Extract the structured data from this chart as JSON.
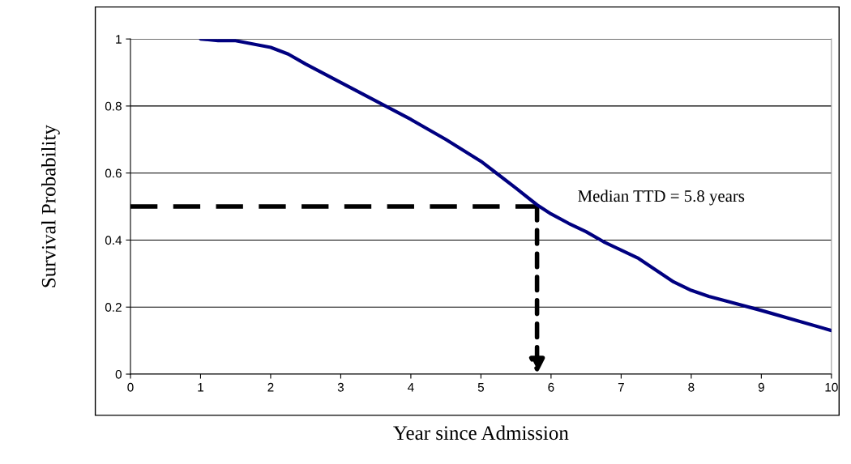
{
  "chart_data": {
    "type": "line",
    "xlabel": "Year since Admission",
    "ylabel": "Survival Probability",
    "x": [
      1,
      1.25,
      1.5,
      2,
      2.25,
      2.5,
      3,
      3.5,
      4,
      4.5,
      5,
      5.25,
      5.5,
      5.8,
      6,
      6.25,
      6.5,
      6.75,
      7,
      7.25,
      7.5,
      7.75,
      8,
      8.25,
      8.5,
      9,
      9.5,
      10
    ],
    "series": [
      {
        "color": "#000080",
        "values": [
          1.0,
          0.995,
          0.995,
          0.975,
          0.955,
          0.925,
          0.87,
          0.815,
          0.76,
          0.7,
          0.635,
          0.595,
          0.555,
          0.505,
          0.478,
          0.45,
          0.425,
          0.395,
          0.37,
          0.345,
          0.31,
          0.275,
          0.25,
          0.232,
          0.218,
          0.19,
          0.16,
          0.13
        ]
      },
      {
        "type": "line",
        "x": [
          0,
          5.8
        ],
        "color": "#000000",
        "line_style": "dashed",
        "values": [
          0.5,
          0.5
        ]
      }
    ],
    "xlim": [
      0,
      10
    ],
    "xticks": [
      0,
      1,
      2,
      3,
      4,
      5,
      6,
      7,
      8,
      9,
      10
    ],
    "ylim": [
      0,
      1
    ],
    "yticks": [
      0,
      0.2,
      0.4,
      0.6,
      0.8,
      1
    ],
    "grid": "y",
    "marker": "none",
    "line_style": "solid",
    "annotations": [
      {
        "text": "Median TTD = 5.8 years",
        "x": 5.8,
        "y": 0.5
      }
    ]
  }
}
